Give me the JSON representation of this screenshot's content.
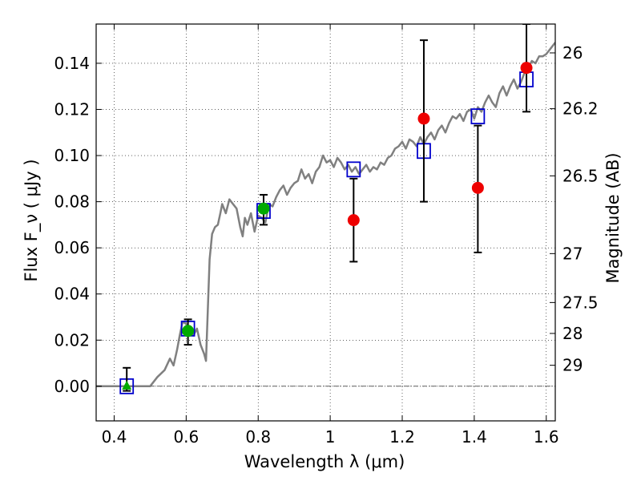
{
  "chart_data": {
    "type": "scatter",
    "xlabel": "Wavelength  λ (μm)",
    "ylabel": "Flux  F_ν  ( μJy )",
    "ylabel_right": "Magnitude (AB)",
    "xlim": [
      0.35,
      1.625
    ],
    "ylim": [
      -0.015,
      0.157
    ],
    "grid": true,
    "x_ticks": [
      0.4,
      0.6,
      0.8,
      1.0,
      1.2,
      1.4,
      1.6
    ],
    "x_tick_labels": [
      "0.4",
      "0.6",
      "0.8",
      "1",
      "1.2",
      "1.4",
      "1.6"
    ],
    "y_ticks": [
      0.0,
      0.02,
      0.04,
      0.06,
      0.08,
      0.1,
      0.12,
      0.14
    ],
    "y_tick_labels": [
      "0.00",
      "0.02",
      "0.04",
      "0.06",
      "0.08",
      "0.10",
      "0.12",
      "0.14"
    ],
    "right_ticks": [
      {
        "flux": 0.1445,
        "label": "26"
      },
      {
        "flux": 0.1203,
        "label": "26.2"
      },
      {
        "flux": 0.0912,
        "label": "26.5"
      },
      {
        "flux": 0.0575,
        "label": "27"
      },
      {
        "flux": 0.0363,
        "label": "27.5"
      },
      {
        "flux": 0.0229,
        "label": "28"
      },
      {
        "flux": 0.0091,
        "label": "29"
      }
    ],
    "series": [
      {
        "kind": "line",
        "color": "#808080",
        "points": [
          [
            0.35,
            0.0
          ],
          [
            0.48,
            0.0
          ],
          [
            0.5,
            0.0
          ],
          [
            0.52,
            0.004
          ],
          [
            0.54,
            0.007
          ],
          [
            0.555,
            0.012
          ],
          [
            0.565,
            0.009
          ],
          [
            0.575,
            0.016
          ],
          [
            0.582,
            0.022
          ],
          [
            0.59,
            0.028
          ],
          [
            0.6,
            0.027
          ],
          [
            0.61,
            0.024
          ],
          [
            0.62,
            0.022
          ],
          [
            0.63,
            0.025
          ],
          [
            0.64,
            0.018
          ],
          [
            0.65,
            0.014
          ],
          [
            0.655,
            0.011
          ],
          [
            0.665,
            0.055
          ],
          [
            0.672,
            0.066
          ],
          [
            0.68,
            0.069
          ],
          [
            0.688,
            0.07
          ],
          [
            0.695,
            0.075
          ],
          [
            0.7,
            0.079
          ],
          [
            0.71,
            0.075
          ],
          [
            0.72,
            0.081
          ],
          [
            0.73,
            0.079
          ],
          [
            0.74,
            0.077
          ],
          [
            0.75,
            0.069
          ],
          [
            0.757,
            0.065
          ],
          [
            0.763,
            0.073
          ],
          [
            0.77,
            0.07
          ],
          [
            0.78,
            0.075
          ],
          [
            0.79,
            0.067
          ],
          [
            0.8,
            0.074
          ],
          [
            0.81,
            0.073
          ],
          [
            0.82,
            0.071
          ],
          [
            0.83,
            0.079
          ],
          [
            0.84,
            0.078
          ],
          [
            0.85,
            0.082
          ],
          [
            0.86,
            0.085
          ],
          [
            0.87,
            0.087
          ],
          [
            0.88,
            0.083
          ],
          [
            0.89,
            0.086
          ],
          [
            0.9,
            0.088
          ],
          [
            0.91,
            0.089
          ],
          [
            0.92,
            0.094
          ],
          [
            0.93,
            0.09
          ],
          [
            0.94,
            0.092
          ],
          [
            0.95,
            0.088
          ],
          [
            0.96,
            0.093
          ],
          [
            0.97,
            0.095
          ],
          [
            0.98,
            0.1
          ],
          [
            0.99,
            0.097
          ],
          [
            1.0,
            0.098
          ],
          [
            1.01,
            0.095
          ],
          [
            1.02,
            0.099
          ],
          [
            1.03,
            0.097
          ],
          [
            1.04,
            0.094
          ],
          [
            1.05,
            0.096
          ],
          [
            1.06,
            0.093
          ],
          [
            1.07,
            0.095
          ],
          [
            1.08,
            0.092
          ],
          [
            1.09,
            0.094
          ],
          [
            1.1,
            0.096
          ],
          [
            1.11,
            0.093
          ],
          [
            1.12,
            0.095
          ],
          [
            1.13,
            0.094
          ],
          [
            1.14,
            0.097
          ],
          [
            1.15,
            0.096
          ],
          [
            1.16,
            0.099
          ],
          [
            1.17,
            0.1
          ],
          [
            1.18,
            0.103
          ],
          [
            1.19,
            0.104
          ],
          [
            1.2,
            0.106
          ],
          [
            1.21,
            0.103
          ],
          [
            1.22,
            0.107
          ],
          [
            1.23,
            0.106
          ],
          [
            1.24,
            0.104
          ],
          [
            1.25,
            0.108
          ],
          [
            1.26,
            0.105
          ],
          [
            1.27,
            0.108
          ],
          [
            1.28,
            0.11
          ],
          [
            1.29,
            0.107
          ],
          [
            1.3,
            0.111
          ],
          [
            1.31,
            0.113
          ],
          [
            1.32,
            0.11
          ],
          [
            1.33,
            0.114
          ],
          [
            1.34,
            0.117
          ],
          [
            1.35,
            0.116
          ],
          [
            1.36,
            0.118
          ],
          [
            1.37,
            0.115
          ],
          [
            1.38,
            0.119
          ],
          [
            1.39,
            0.12
          ],
          [
            1.4,
            0.116
          ],
          [
            1.41,
            0.121
          ],
          [
            1.42,
            0.119
          ],
          [
            1.43,
            0.123
          ],
          [
            1.44,
            0.126
          ],
          [
            1.45,
            0.123
          ],
          [
            1.46,
            0.121
          ],
          [
            1.47,
            0.127
          ],
          [
            1.48,
            0.13
          ],
          [
            1.49,
            0.126
          ],
          [
            1.5,
            0.13
          ],
          [
            1.51,
            0.133
          ],
          [
            1.52,
            0.129
          ],
          [
            1.53,
            0.132
          ],
          [
            1.54,
            0.136
          ],
          [
            1.55,
            0.138
          ],
          [
            1.56,
            0.141
          ],
          [
            1.57,
            0.14
          ],
          [
            1.58,
            0.143
          ],
          [
            1.59,
            0.143
          ],
          [
            1.6,
            0.144
          ],
          [
            1.61,
            0.146
          ],
          [
            1.625,
            0.149
          ]
        ]
      },
      {
        "kind": "open-square",
        "color": "#0000cc",
        "points": [
          [
            0.435,
            0.0
          ],
          [
            0.605,
            0.025
          ],
          [
            0.815,
            0.076
          ],
          [
            1.065,
            0.094
          ],
          [
            1.26,
            0.102
          ],
          [
            1.41,
            0.117
          ],
          [
            1.545,
            0.133
          ]
        ]
      },
      {
        "kind": "errorbar",
        "color": "#000000",
        "points": [
          {
            "x": 0.435,
            "lo": -0.002,
            "hi": 0.008
          },
          {
            "x": 0.605,
            "lo": 0.018,
            "hi": 0.029
          },
          {
            "x": 0.815,
            "lo": 0.07,
            "hi": 0.083
          },
          {
            "x": 1.065,
            "lo": 0.054,
            "hi": 0.09
          },
          {
            "x": 1.26,
            "lo": 0.08,
            "hi": 0.15
          },
          {
            "x": 1.41,
            "lo": 0.058,
            "hi": 0.113
          },
          {
            "x": 1.545,
            "lo": 0.119,
            "hi": 0.157
          }
        ]
      },
      {
        "kind": "filled-triangle",
        "color": "#00aa00",
        "points": [
          [
            0.435,
            0.0
          ]
        ]
      },
      {
        "kind": "filled-circle",
        "color": "#00aa00",
        "points": [
          [
            0.605,
            0.024
          ],
          [
            0.815,
            0.077
          ]
        ]
      },
      {
        "kind": "filled-circle",
        "color": "#ee0000",
        "points": [
          [
            1.065,
            0.072
          ],
          [
            1.26,
            0.116
          ],
          [
            1.41,
            0.086
          ],
          [
            1.545,
            0.138
          ]
        ]
      }
    ]
  }
}
